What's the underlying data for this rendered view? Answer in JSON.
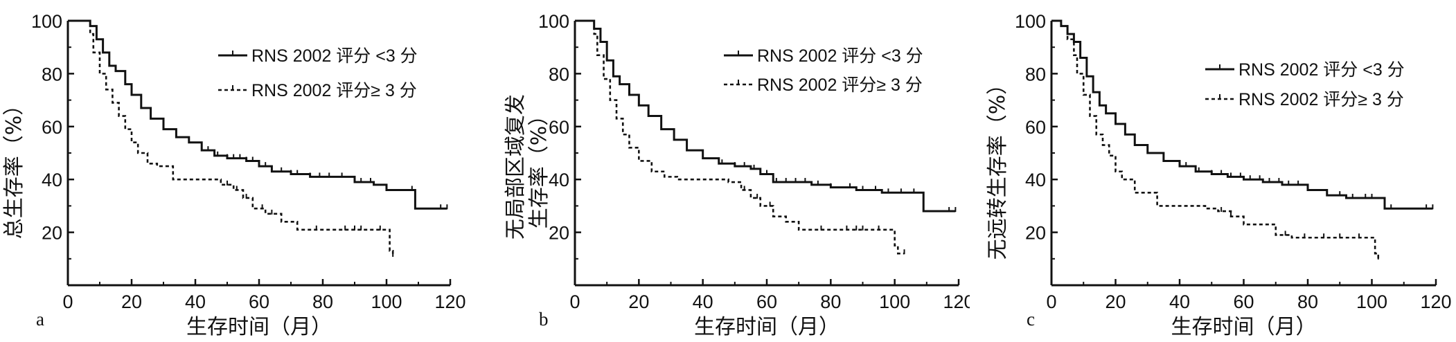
{
  "chart_data": [
    {
      "type": "line",
      "panel_label": "a",
      "ylabel": "总生存率（%）",
      "xlabel": "生存时间（月）",
      "xlim": [
        0,
        120
      ],
      "ylim": [
        0,
        100
      ],
      "xticks": [
        0,
        20,
        40,
        60,
        80,
        100,
        120
      ],
      "yticks": [
        20,
        40,
        60,
        80,
        100
      ],
      "grid": false,
      "legend_placement": "top-right",
      "series": [
        {
          "name": "RNS 2002 评分 <3 分",
          "style": "solid",
          "x": [
            0,
            5,
            7,
            9,
            11,
            13,
            15,
            18,
            20,
            23,
            26,
            30,
            34,
            38,
            42,
            46,
            50,
            56,
            60,
            64,
            70,
            76,
            84,
            90,
            96,
            100,
            104,
            109,
            112,
            116,
            119
          ],
          "y": [
            100,
            100,
            98,
            93,
            88,
            83,
            81,
            76,
            72,
            67,
            63,
            59,
            56,
            54,
            51,
            49,
            48,
            47,
            45,
            43,
            42,
            41,
            41,
            39,
            38,
            36,
            36,
            29,
            29,
            29,
            29
          ],
          "censor_x": [
            44,
            47,
            50,
            52,
            54,
            56,
            58,
            62,
            64,
            67,
            70,
            72,
            76,
            79,
            82,
            86,
            92,
            95,
            100,
            108,
            117,
            119
          ]
        },
        {
          "name": "RNS 2002 评分≥ 3 分",
          "style": "dashed",
          "x": [
            0,
            5,
            7,
            8,
            10,
            12,
            14,
            16,
            18,
            20,
            22,
            25,
            28,
            33,
            40,
            48,
            52,
            55,
            58,
            62,
            67,
            72,
            80,
            88,
            96,
            100,
            101,
            102
          ],
          "y": [
            100,
            100,
            95,
            88,
            80,
            74,
            69,
            64,
            59,
            54,
            50,
            46,
            45,
            40,
            40,
            38,
            36,
            33,
            29,
            27,
            24,
            21,
            21,
            21,
            21,
            21,
            13,
            11
          ],
          "censor_x": [
            50,
            53,
            56,
            61,
            64,
            78,
            87,
            90,
            92,
            98,
            102
          ]
        }
      ]
    },
    {
      "type": "line",
      "panel_label": "b",
      "ylabel_line1": "无局部区域复发",
      "ylabel_line2": "生存率（%）",
      "xlabel": "生存时间（月）",
      "xlim": [
        0,
        120
      ],
      "ylim": [
        0,
        100
      ],
      "xticks": [
        0,
        20,
        40,
        60,
        80,
        100,
        120
      ],
      "yticks": [
        20,
        40,
        60,
        80,
        100
      ],
      "grid": false,
      "legend_placement": "top-right",
      "series": [
        {
          "name": "RNS 2002 评分 <3 分",
          "style": "solid",
          "x": [
            0,
            4,
            6,
            8,
            10,
            12,
            14,
            17,
            20,
            23,
            27,
            31,
            35,
            40,
            45,
            50,
            55,
            58,
            62,
            68,
            74,
            80,
            88,
            96,
            102,
            106,
            109,
            112,
            116,
            119
          ],
          "y": [
            100,
            100,
            97,
            92,
            85,
            79,
            76,
            72,
            68,
            64,
            59,
            55,
            51,
            48,
            46,
            45,
            44,
            42,
            39,
            39,
            38,
            37,
            36,
            35,
            35,
            35,
            28,
            28,
            28,
            28
          ],
          "censor_x": [
            46,
            50,
            53,
            56,
            60,
            63,
            66,
            69,
            72,
            76,
            80,
            86,
            90,
            94,
            98,
            102,
            106,
            117,
            119
          ]
        },
        {
          "name": "RNS 2002 评分≥ 3 分",
          "style": "dashed",
          "x": [
            0,
            4,
            6,
            7,
            9,
            11,
            13,
            15,
            17,
            20,
            24,
            28,
            32,
            40,
            48,
            52,
            55,
            58,
            62,
            66,
            70,
            80,
            90,
            98,
            100,
            101,
            103
          ],
          "y": [
            100,
            100,
            95,
            87,
            78,
            70,
            63,
            57,
            52,
            47,
            43,
            41,
            40,
            40,
            39,
            36,
            33,
            30,
            26,
            24,
            21,
            21,
            21,
            21,
            15,
            12,
            12
          ],
          "censor_x": [
            53,
            57,
            61,
            77,
            85,
            88,
            90,
            95,
            103
          ]
        }
      ]
    },
    {
      "type": "line",
      "panel_label": "c",
      "ylabel": "无远转生存率（%）",
      "xlabel": "生存时间（月）",
      "xlim": [
        0,
        120
      ],
      "ylim": [
        0,
        100
      ],
      "xticks": [
        0,
        20,
        40,
        60,
        80,
        100,
        120
      ],
      "yticks": [
        20,
        40,
        60,
        80,
        100
      ],
      "grid": false,
      "legend_placement": "top-right",
      "series": [
        {
          "name": "RNS 2002 评分 <3 分",
          "style": "solid",
          "x": [
            0,
            3,
            5,
            7,
            9,
            11,
            13,
            15,
            17,
            20,
            23,
            26,
            30,
            35,
            40,
            45,
            50,
            55,
            60,
            66,
            72,
            80,
            86,
            92,
            98,
            102,
            104,
            110,
            116,
            119
          ],
          "y": [
            100,
            98,
            95,
            92,
            86,
            79,
            73,
            68,
            65,
            61,
            57,
            53,
            50,
            47,
            45,
            43,
            42,
            41,
            40,
            39,
            38,
            36,
            34,
            33,
            33,
            33,
            29,
            29,
            29,
            29
          ],
          "censor_x": [
            42,
            46,
            50,
            53,
            56,
            59,
            62,
            65,
            68,
            71,
            74,
            77,
            80,
            86,
            90,
            94,
            98,
            100,
            106,
            117,
            119
          ]
        },
        {
          "name": "RNS 2002 评分≥ 3 分",
          "style": "dashed",
          "x": [
            0,
            3,
            5,
            7,
            8,
            10,
            12,
            14,
            16,
            18,
            20,
            22,
            26,
            30,
            33,
            40,
            48,
            52,
            56,
            60,
            66,
            70,
            75,
            82,
            90,
            98,
            101,
            102
          ],
          "y": [
            100,
            98,
            93,
            87,
            80,
            72,
            64,
            57,
            53,
            49,
            43,
            40,
            35,
            35,
            30,
            30,
            29,
            28,
            26,
            23,
            23,
            19,
            18,
            18,
            18,
            18,
            12,
            10
          ],
          "censor_x": [
            53,
            56,
            73,
            79,
            85,
            90,
            96,
            102
          ]
        }
      ]
    }
  ]
}
